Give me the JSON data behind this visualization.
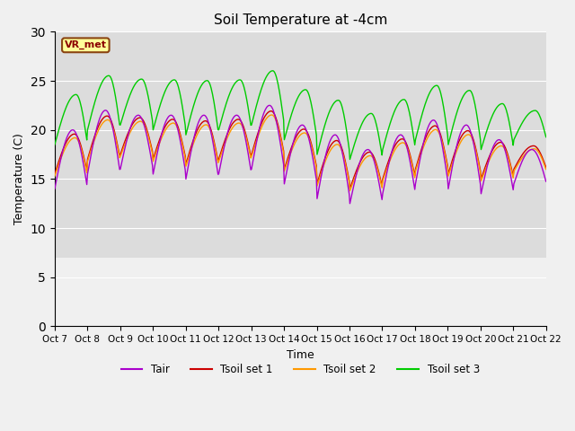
{
  "title": "Soil Temperature at -4cm",
  "xlabel": "Time",
  "ylabel": "Temperature (C)",
  "ylim": [
    0,
    30
  ],
  "yticks": [
    0,
    5,
    10,
    15,
    20,
    25,
    30
  ],
  "x_labels": [
    "Oct 7",
    "Oct 8",
    "Oct 9",
    "Oct 10",
    "Oct 11",
    "Oct 12",
    "Oct 13",
    "Oct 14",
    "Oct 15",
    "Oct 16",
    "Oct 17",
    "Oct 18",
    "Oct 19",
    "Oct 20",
    "Oct 21",
    "Oct 22"
  ],
  "annotation_text": "VR_met",
  "colors": {
    "Tair": "#aa00cc",
    "Tsoil1": "#cc0000",
    "Tsoil2": "#ff9900",
    "Tsoil3": "#00cc00"
  },
  "legend_labels": [
    "Tair",
    "Tsoil set 1",
    "Tsoil set 2",
    "Tsoil set 3"
  ],
  "axes_facecolor": "#dcdcdc",
  "fig_facecolor": "#f0f0f0",
  "grid_color": "#ffffff",
  "shaded_min": 7.0,
  "shaded_max": 30.0,
  "shaded_color": "#dcdcdc"
}
